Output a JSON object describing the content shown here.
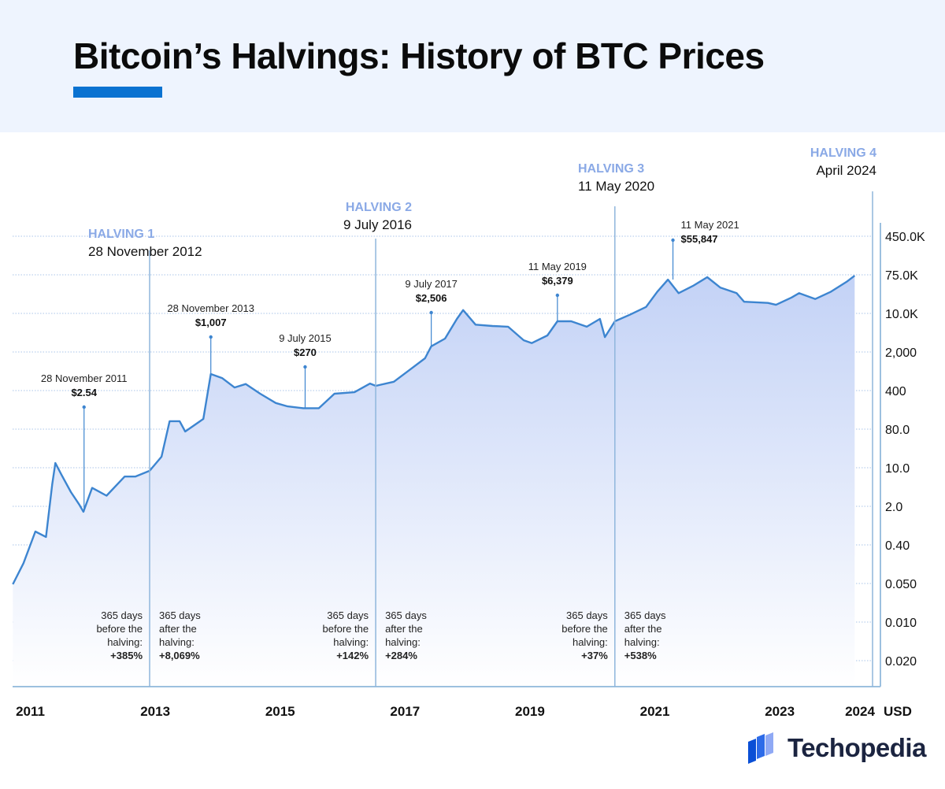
{
  "title": "Bitcoin’s Halvings: History of BTC Prices",
  "brand": "Techopedia",
  "colors": {
    "accent": "#0a72d1",
    "line": "#3d85d0",
    "fill_top": "#c3d2f6",
    "halving_label": "#8aa9e6",
    "header_bg": "#eef4fe"
  },
  "chart_data": {
    "type": "area",
    "xlabel": "",
    "ylabel": "USD",
    "y_scale": "log",
    "grid": true,
    "x_ticks": [
      {
        "label": "2011",
        "year": 2011.0
      },
      {
        "label": "2013",
        "year": 2013.0
      },
      {
        "label": "2015",
        "year": 2015.0
      },
      {
        "label": "2017",
        "year": 2017.0
      },
      {
        "label": "2019",
        "year": 2019.0
      },
      {
        "label": "2021",
        "year": 2021.0
      },
      {
        "label": "2023",
        "year": 2023.0
      },
      {
        "label": "2024",
        "year": 2024.0
      }
    ],
    "y_unit_label": "USD",
    "y_tick_labels": [
      "450.0K",
      "75.0K",
      "10.0K",
      "2,000",
      "400",
      "80.0",
      "10.0",
      "2.0",
      "0.40",
      "0.050",
      "0.010",
      "0.020"
    ],
    "series": [
      {
        "points": [
          [
            2010.72,
            0.05
          ],
          [
            2010.89,
            0.13
          ],
          [
            2011.08,
            0.55
          ],
          [
            2011.25,
            0.43
          ],
          [
            2011.35,
            4.7
          ],
          [
            2011.4,
            12.4
          ],
          [
            2011.5,
            7.2
          ],
          [
            2011.65,
            3.3
          ],
          [
            2011.78,
            1.9
          ],
          [
            2011.85,
            1.35
          ],
          [
            2011.99,
            4.0
          ],
          [
            2012.22,
            2.8
          ],
          [
            2012.51,
            6.7
          ],
          [
            2012.68,
            6.7
          ],
          [
            2012.91,
            8.7
          ],
          [
            2013.1,
            16.5
          ],
          [
            2013.23,
            83
          ],
          [
            2013.39,
            83
          ],
          [
            2013.48,
            52
          ],
          [
            2013.77,
            92
          ],
          [
            2013.89,
            710
          ],
          [
            2014.07,
            590
          ],
          [
            2014.27,
            385
          ],
          [
            2014.45,
            450
          ],
          [
            2014.68,
            290
          ],
          [
            2014.93,
            190
          ],
          [
            2015.12,
            163
          ],
          [
            2015.37,
            150
          ],
          [
            2015.62,
            150
          ],
          [
            2015.87,
            290
          ],
          [
            2016.19,
            310
          ],
          [
            2016.44,
            460
          ],
          [
            2016.53,
            415
          ],
          [
            2016.82,
            500
          ],
          [
            2017.07,
            850
          ],
          [
            2017.32,
            1450
          ],
          [
            2017.42,
            2500
          ],
          [
            2017.64,
            3550
          ],
          [
            2017.83,
            8700
          ],
          [
            2017.93,
            13000
          ],
          [
            2018.13,
            6700
          ],
          [
            2018.4,
            6300
          ],
          [
            2018.65,
            6100
          ],
          [
            2018.9,
            3300
          ],
          [
            2019.03,
            2900
          ],
          [
            2019.28,
            4100
          ],
          [
            2019.44,
            7800
          ],
          [
            2019.66,
            7800
          ],
          [
            2019.91,
            6100
          ],
          [
            2020.12,
            8700
          ],
          [
            2020.2,
            3800
          ],
          [
            2020.36,
            7800
          ],
          [
            2020.6,
            10500
          ],
          [
            2020.86,
            15000
          ],
          [
            2021.04,
            30000
          ],
          [
            2021.21,
            52000
          ],
          [
            2021.38,
            28000
          ],
          [
            2021.61,
            39000
          ],
          [
            2021.84,
            58000
          ],
          [
            2022.05,
            36000
          ],
          [
            2022.31,
            28000
          ],
          [
            2022.43,
            19000
          ],
          [
            2022.81,
            18000
          ],
          [
            2022.94,
            16500
          ],
          [
            2023.19,
            23000
          ],
          [
            2023.31,
            28000
          ],
          [
            2023.57,
            21500
          ],
          [
            2023.82,
            30000
          ],
          [
            2024.07,
            47000
          ],
          [
            2024.2,
            62000
          ]
        ]
      }
    ],
    "halvings": [
      {
        "label": "HALVING 1",
        "date": "28 November 2012",
        "year": 2012.91,
        "before_note": [
          "365 days",
          "before the",
          "halving:"
        ],
        "before_value": "+385%",
        "after_note": [
          "365 days",
          "after the",
          "halving:"
        ],
        "after_value": "+8,069%"
      },
      {
        "label": "HALVING 2",
        "date": "9 July 2016",
        "year": 2016.53,
        "before_note": [
          "365 days",
          "before the",
          "halving:"
        ],
        "before_value": "+142%",
        "after_note": [
          "365 days",
          "after the",
          "halving:"
        ],
        "after_value": "+284%"
      },
      {
        "label": "HALVING 3",
        "date": "11 May 2020",
        "year": 2020.36,
        "before_note": [
          "365 days",
          "before the",
          "halving:"
        ],
        "before_value": "+37%",
        "after_note": [
          "365 days",
          "after the",
          "halving:"
        ],
        "after_value": "+538%"
      },
      {
        "label": "HALVING 4",
        "date": "April 2024",
        "year": 2024.5
      }
    ],
    "annotations": [
      {
        "date": "28 November 2011",
        "value": "$2.54",
        "year": 2011.86,
        "price": 1.35
      },
      {
        "date": "28 November 2013",
        "value": "$1,007",
        "year": 2013.89,
        "price": 710
      },
      {
        "date": "9 July 2015",
        "value": "$270",
        "year": 2015.4,
        "price": 150
      },
      {
        "date": "9 July 2017",
        "value": "$2,506",
        "year": 2017.42,
        "price": 2500
      },
      {
        "date": "11 May 2019",
        "value": "$6,379",
        "year": 2019.44,
        "price": 7800
      },
      {
        "date": "11 May 2021",
        "value": "$55,847",
        "year": 2021.29,
        "price": 52000
      }
    ]
  }
}
